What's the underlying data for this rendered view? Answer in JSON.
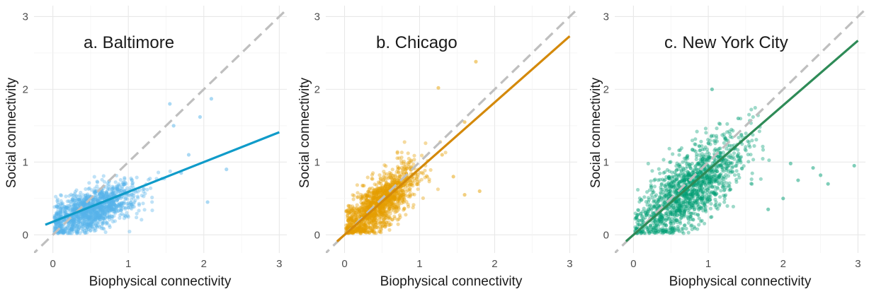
{
  "chart_data": [
    {
      "type": "scatter",
      "title": "a. Baltimore",
      "xlabel": "Biophysical connectivity",
      "ylabel": "Social connectivity",
      "xlim": [
        -0.25,
        3.1
      ],
      "ylim": [
        -0.25,
        3.15
      ],
      "xticks": [
        "0",
        "1",
        "2",
        "3"
      ],
      "yticks": [
        "0",
        "1",
        "2",
        "3"
      ],
      "grid": true,
      "point_color": "#56B4E9",
      "line_color": "#0F9BC9",
      "fit": {
        "intercept": 0.18,
        "slope": 0.41,
        "x_range": [
          -0.1,
          3.0
        ]
      },
      "reference_line": {
        "slope": 1,
        "intercept": 0,
        "style": "dashed",
        "color": "#BFBFBF"
      },
      "cloud": {
        "x_center": 0.5,
        "y_center": 0.33,
        "x_spread": 0.3,
        "y_spread": 0.14,
        "slope": 0.35
      },
      "outliers": [
        [
          1.55,
          1.8
        ],
        [
          2.1,
          1.87
        ],
        [
          1.95,
          1.62
        ],
        [
          1.6,
          1.5
        ],
        [
          1.7,
          0.85
        ],
        [
          2.05,
          0.45
        ],
        [
          2.3,
          0.9
        ],
        [
          1.8,
          1.1
        ]
      ]
    },
    {
      "type": "scatter",
      "title": "b. Chicago",
      "xlabel": "Biophysical connectivity",
      "ylabel": "Social connectivity",
      "xlim": [
        -0.25,
        3.1
      ],
      "ylim": [
        -0.25,
        3.15
      ],
      "xticks": [
        "0",
        "1",
        "2",
        "3"
      ],
      "yticks": [
        "0",
        "1",
        "2",
        "3"
      ],
      "grid": true,
      "point_color": "#E69F00",
      "line_color": "#D4890A",
      "fit": {
        "intercept": 0.0,
        "slope": 0.91,
        "x_range": [
          -0.1,
          3.0
        ]
      },
      "reference_line": {
        "slope": 1,
        "intercept": 0,
        "style": "dashed",
        "color": "#BFBFBF"
      },
      "cloud": {
        "x_center": 0.45,
        "y_center": 0.4,
        "x_spread": 0.25,
        "y_spread": 0.18,
        "slope": 0.8
      },
      "outliers": [
        [
          1.75,
          2.38
        ],
        [
          1.25,
          2.02
        ],
        [
          1.6,
          1.55
        ],
        [
          1.45,
          0.8
        ],
        [
          1.6,
          0.55
        ],
        [
          1.8,
          0.6
        ],
        [
          1.3,
          1.1
        ]
      ]
    },
    {
      "type": "scatter",
      "title": "c. New York City",
      "xlabel": "Biophysical connectivity",
      "ylabel": "Social connectivity",
      "xlim": [
        -0.25,
        3.1
      ],
      "ylim": [
        -0.25,
        3.15
      ],
      "xticks": [
        "0",
        "1",
        "2",
        "3"
      ],
      "yticks": [
        "0",
        "1",
        "2",
        "3"
      ],
      "grid": true,
      "point_color": "#009E73",
      "line_color": "#2E8B57",
      "fit": {
        "intercept": 0.0,
        "slope": 0.89,
        "x_range": [
          -0.1,
          3.0
        ]
      },
      "reference_line": {
        "slope": 1,
        "intercept": 0,
        "style": "dashed",
        "color": "#BFBFBF"
      },
      "cloud": {
        "x_center": 0.75,
        "y_center": 0.62,
        "x_spread": 0.35,
        "y_spread": 0.25,
        "slope": 0.7
      },
      "outliers": [
        [
          2.95,
          0.95
        ],
        [
          2.5,
          0.82
        ],
        [
          2.2,
          0.75
        ],
        [
          2.6,
          0.7
        ],
        [
          1.05,
          2.0
        ],
        [
          1.4,
          1.6
        ],
        [
          2.0,
          0.5
        ],
        [
          1.8,
          0.35
        ],
        [
          2.1,
          0.98
        ],
        [
          2.4,
          0.92
        ]
      ]
    }
  ]
}
